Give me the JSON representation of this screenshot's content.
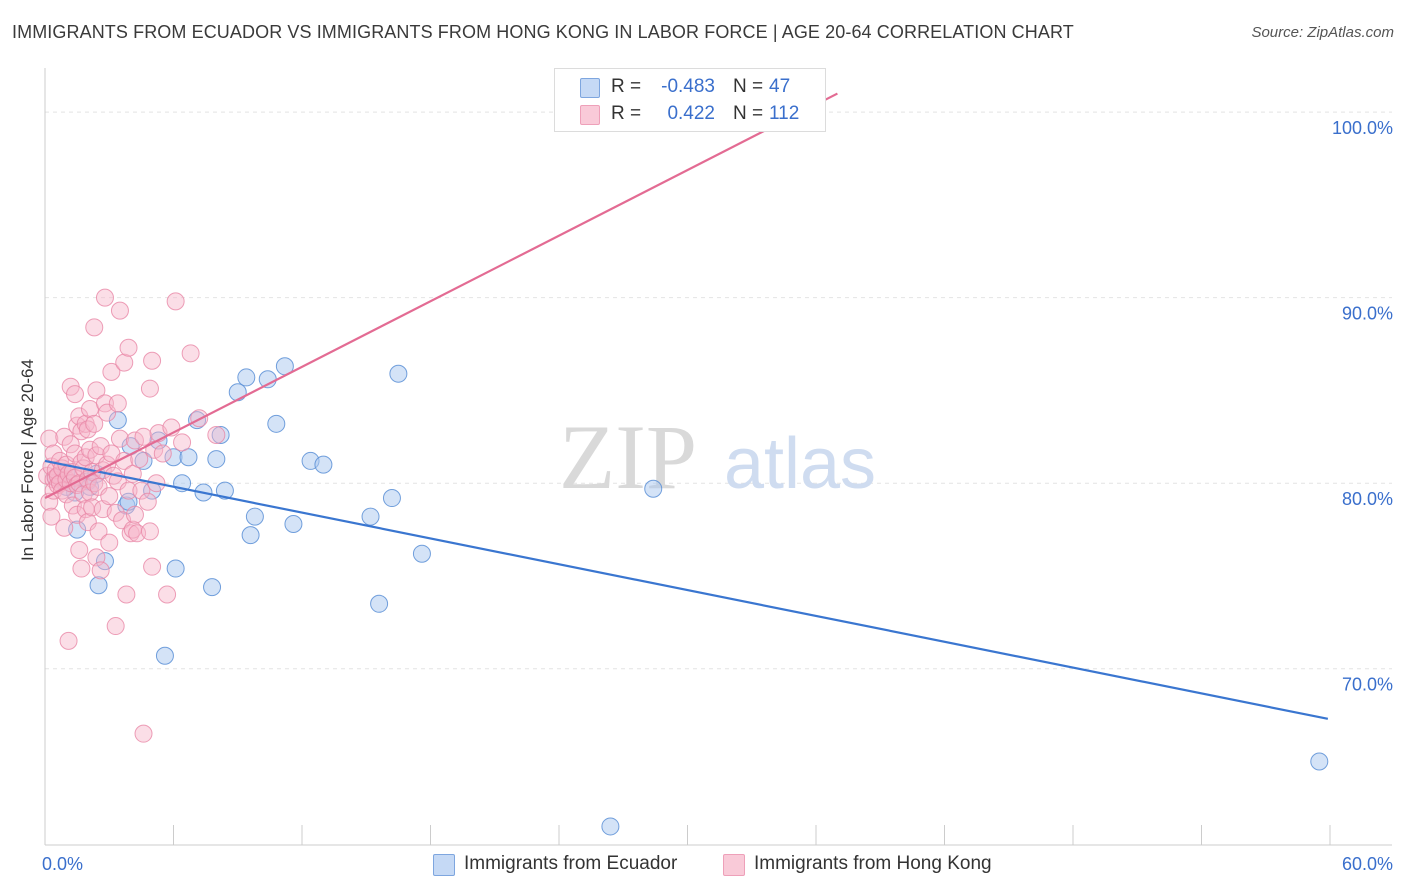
{
  "title": "IMMIGRANTS FROM ECUADOR VS IMMIGRANTS FROM HONG KONG IN LABOR FORCE | AGE 20-64 CORRELATION CHART",
  "source": "Source: ZipAtlas.com",
  "watermark": {
    "zip": "ZIP",
    "atlas": "atlas"
  },
  "legend": {
    "r_label": "R =",
    "n_label": "N =",
    "rows": [
      {
        "r": "-0.483",
        "n": "47"
      },
      {
        "r": "0.422",
        "n": "112"
      }
    ]
  },
  "colors": {
    "ecuador_fill": "#a9c7f0",
    "ecuador_stroke": "#5b8fd6",
    "ecuador_line": "#3a76d0",
    "hongkong_fill": "#f6b6c9",
    "hongkong_stroke": "#e887a6",
    "hongkong_line": "#e36b93",
    "tick_text": "#3a6fcc",
    "grid": "#e4e4e4"
  },
  "chart_data": {
    "type": "scatter",
    "title": "IMMIGRANTS FROM ECUADOR VS IMMIGRANTS FROM HONG KONG IN LABOR FORCE | AGE 20-64 CORRELATION CHART",
    "xlabel": "",
    "ylabel": "In Labor Force | Age 20-64",
    "xlim": [
      0,
      60
    ],
    "ylim": [
      60.5,
      102
    ],
    "x_tick_labels": [
      {
        "value": 0,
        "label": "0.0%"
      },
      {
        "value": 60,
        "label": "60.0%"
      }
    ],
    "y_tick_labels": [
      {
        "value": 70,
        "label": "70.0%"
      },
      {
        "value": 80,
        "label": "80.0%"
      },
      {
        "value": 90,
        "label": "90.0%"
      },
      {
        "value": 100,
        "label": "100.0%"
      }
    ],
    "series": [
      {
        "name": "Immigrants from Ecuador",
        "R": -0.483,
        "N": 47,
        "trend": {
          "x": [
            0.0,
            59.9
          ],
          "y": [
            81.2,
            67.3
          ]
        },
        "points": [
          [
            0.5,
            80.3
          ],
          [
            1.0,
            80.6
          ],
          [
            1.2,
            80.0
          ],
          [
            1.4,
            79.5
          ],
          [
            1.0,
            79.8
          ],
          [
            1.5,
            77.5
          ],
          [
            2.0,
            80.1
          ],
          [
            2.1,
            79.8
          ],
          [
            2.4,
            80.5
          ],
          [
            2.5,
            74.5
          ],
          [
            2.8,
            75.8
          ],
          [
            3.4,
            83.4
          ],
          [
            3.8,
            78.8
          ],
          [
            3.9,
            79.0
          ],
          [
            4.0,
            82.0
          ],
          [
            4.6,
            81.2
          ],
          [
            5.0,
            79.6
          ],
          [
            5.3,
            82.3
          ],
          [
            5.6,
            70.7
          ],
          [
            6.0,
            81.4
          ],
          [
            6.1,
            75.4
          ],
          [
            6.4,
            80.0
          ],
          [
            6.7,
            81.4
          ],
          [
            7.1,
            83.4
          ],
          [
            7.4,
            79.5
          ],
          [
            7.8,
            74.4
          ],
          [
            8.0,
            81.3
          ],
          [
            8.2,
            82.6
          ],
          [
            8.4,
            79.6
          ],
          [
            9.0,
            84.9
          ],
          [
            9.4,
            85.7
          ],
          [
            9.6,
            77.2
          ],
          [
            9.8,
            78.2
          ],
          [
            10.4,
            85.6
          ],
          [
            10.8,
            83.2
          ],
          [
            11.2,
            86.3
          ],
          [
            11.6,
            77.8
          ],
          [
            12.4,
            81.2
          ],
          [
            13.0,
            81.0
          ],
          [
            15.2,
            78.2
          ],
          [
            15.6,
            73.5
          ],
          [
            16.2,
            79.2
          ],
          [
            16.5,
            85.9
          ],
          [
            17.6,
            76.2
          ],
          [
            26.4,
            61.5
          ],
          [
            28.4,
            79.7
          ],
          [
            59.5,
            65.0
          ]
        ]
      },
      {
        "name": "Immigrants from Hong Kong",
        "R": 0.422,
        "N": 112,
        "trend": {
          "x": [
            0.0,
            37.0
          ],
          "y": [
            79.2,
            101.0
          ]
        },
        "points": [
          [
            0.1,
            80.4
          ],
          [
            0.2,
            82.4
          ],
          [
            0.2,
            79.0
          ],
          [
            0.3,
            80.9
          ],
          [
            0.3,
            78.2
          ],
          [
            0.4,
            80.2
          ],
          [
            0.4,
            79.6
          ],
          [
            0.4,
            81.6
          ],
          [
            0.5,
            80.3
          ],
          [
            0.5,
            80.7
          ],
          [
            0.6,
            79.9
          ],
          [
            0.6,
            80.4
          ],
          [
            0.7,
            81.2
          ],
          [
            0.7,
            80.0
          ],
          [
            0.8,
            79.6
          ],
          [
            0.8,
            80.8
          ],
          [
            0.9,
            82.5
          ],
          [
            0.9,
            77.6
          ],
          [
            1.0,
            80.2
          ],
          [
            1.0,
            81.0
          ],
          [
            1.0,
            79.4
          ],
          [
            1.1,
            80.5
          ],
          [
            1.1,
            71.5
          ],
          [
            1.2,
            85.2
          ],
          [
            1.2,
            80.0
          ],
          [
            1.2,
            82.1
          ],
          [
            1.3,
            80.6
          ],
          [
            1.3,
            78.8
          ],
          [
            1.4,
            84.8
          ],
          [
            1.4,
            80.3
          ],
          [
            1.4,
            81.6
          ],
          [
            1.5,
            83.1
          ],
          [
            1.5,
            78.3
          ],
          [
            1.5,
            79.9
          ],
          [
            1.6,
            83.6
          ],
          [
            1.6,
            80.0
          ],
          [
            1.6,
            76.4
          ],
          [
            1.7,
            82.8
          ],
          [
            1.7,
            81.1
          ],
          [
            1.7,
            75.4
          ],
          [
            1.8,
            80.8
          ],
          [
            1.8,
            79.4
          ],
          [
            1.9,
            83.2
          ],
          [
            1.9,
            81.4
          ],
          [
            1.9,
            78.6
          ],
          [
            2.0,
            80.2
          ],
          [
            2.0,
            82.9
          ],
          [
            2.0,
            77.9
          ],
          [
            2.1,
            84.0
          ],
          [
            2.1,
            81.8
          ],
          [
            2.1,
            79.5
          ],
          [
            2.2,
            80.6
          ],
          [
            2.2,
            78.7
          ],
          [
            2.3,
            88.4
          ],
          [
            2.3,
            83.2
          ],
          [
            2.3,
            80.0
          ],
          [
            2.4,
            85.0
          ],
          [
            2.4,
            81.5
          ],
          [
            2.4,
            76.0
          ],
          [
            2.5,
            79.8
          ],
          [
            2.5,
            77.4
          ],
          [
            2.6,
            75.3
          ],
          [
            2.6,
            82.0
          ],
          [
            2.7,
            80.7
          ],
          [
            2.7,
            78.6
          ],
          [
            2.8,
            90.0
          ],
          [
            2.8,
            84.3
          ],
          [
            2.9,
            83.8
          ],
          [
            2.9,
            81.0
          ],
          [
            3.0,
            79.3
          ],
          [
            3.0,
            76.8
          ],
          [
            3.1,
            86.0
          ],
          [
            3.1,
            81.6
          ],
          [
            3.2,
            80.4
          ],
          [
            3.3,
            78.4
          ],
          [
            3.3,
            72.3
          ],
          [
            3.4,
            84.3
          ],
          [
            3.4,
            80.1
          ],
          [
            3.5,
            89.3
          ],
          [
            3.5,
            82.4
          ],
          [
            3.6,
            78.0
          ],
          [
            3.7,
            86.5
          ],
          [
            3.7,
            81.2
          ],
          [
            3.8,
            74.0
          ],
          [
            3.9,
            87.3
          ],
          [
            3.9,
            79.6
          ],
          [
            4.0,
            77.3
          ],
          [
            4.1,
            77.5
          ],
          [
            4.1,
            80.5
          ],
          [
            4.2,
            82.3
          ],
          [
            4.2,
            78.3
          ],
          [
            4.3,
            77.3
          ],
          [
            4.4,
            81.3
          ],
          [
            4.5,
            79.6
          ],
          [
            4.6,
            82.5
          ],
          [
            4.6,
            66.5
          ],
          [
            4.8,
            79.0
          ],
          [
            4.9,
            85.1
          ],
          [
            4.9,
            77.4
          ],
          [
            5.0,
            86.6
          ],
          [
            5.0,
            75.5
          ],
          [
            5.1,
            81.8
          ],
          [
            5.2,
            80.0
          ],
          [
            5.3,
            82.7
          ],
          [
            5.5,
            81.6
          ],
          [
            5.7,
            74.0
          ],
          [
            5.9,
            83.0
          ],
          [
            6.1,
            89.8
          ],
          [
            6.4,
            82.2
          ],
          [
            6.8,
            87.0
          ],
          [
            7.2,
            83.5
          ],
          [
            8.0,
            82.6
          ]
        ]
      }
    ]
  },
  "bottom_legend": [
    "Immigrants from Ecuador",
    "Immigrants from Hong Kong"
  ]
}
